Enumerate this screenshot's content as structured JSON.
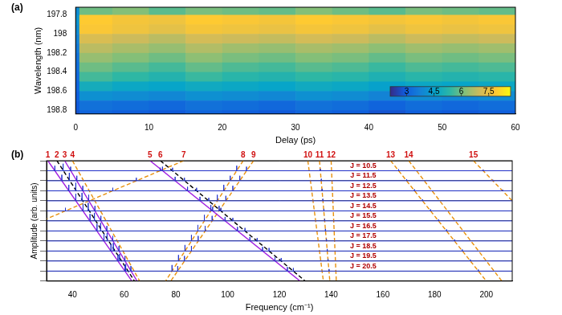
{
  "chart_data": [
    {
      "type": "heatmap",
      "panel": "(a)",
      "x_label": "Delay (ps)",
      "y_label": "Wavelength (nm)",
      "xlim": [
        0,
        60
      ],
      "xticks": [
        0,
        10,
        20,
        30,
        40,
        50,
        60
      ],
      "ylim": [
        198.84,
        197.72
      ],
      "yticks": [
        197.8,
        198,
        198.2,
        198.4,
        198.6,
        198.8
      ],
      "grid": false,
      "x_edges": [
        0,
        0.5,
        5,
        10,
        15,
        20,
        25,
        30,
        35,
        40,
        45,
        50,
        55,
        60
      ],
      "y_edges": [
        197.72,
        197.8,
        197.9,
        198,
        198.1,
        198.2,
        198.3,
        198.4,
        198.5,
        198.6,
        198.7,
        198.8,
        198.84
      ],
      "values": [
        [
          4.0,
          6.0,
          6.2,
          5.8,
          6.1,
          6.0,
          5.9,
          6.2,
          6.0,
          5.8,
          6.1,
          6.0,
          5.9
        ],
        [
          4.2,
          7.9,
          7.7,
          7.6,
          7.9,
          7.8,
          7.7,
          7.9,
          7.8,
          7.7,
          7.8,
          7.7,
          7.8
        ],
        [
          4.0,
          7.8,
          7.6,
          7.4,
          7.7,
          7.6,
          7.5,
          7.7,
          7.6,
          7.4,
          7.6,
          7.5,
          7.6
        ],
        [
          3.8,
          7.2,
          7.0,
          6.8,
          7.1,
          7.0,
          6.9,
          7.1,
          7.0,
          6.8,
          7.0,
          6.9,
          7.0
        ],
        [
          3.6,
          6.8,
          6.6,
          6.4,
          6.7,
          6.5,
          6.4,
          6.6,
          6.5,
          6.3,
          6.5,
          6.4,
          6.5
        ],
        [
          3.4,
          6.4,
          6.2,
          6.0,
          6.3,
          6.1,
          6.0,
          6.2,
          6.1,
          5.9,
          6.1,
          6.0,
          6.1
        ],
        [
          3.3,
          6.0,
          5.8,
          5.6,
          5.9,
          5.7,
          5.6,
          5.8,
          5.7,
          5.5,
          5.7,
          5.6,
          5.7
        ],
        [
          3.2,
          5.6,
          5.4,
          5.2,
          5.5,
          5.3,
          5.2,
          5.4,
          5.3,
          5.1,
          5.3,
          5.2,
          5.3
        ],
        [
          3.1,
          4.9,
          4.7,
          4.6,
          4.8,
          4.7,
          4.6,
          4.8,
          4.7,
          4.5,
          4.7,
          4.6,
          4.7
        ],
        [
          3.0,
          4.1,
          4.0,
          3.9,
          4.1,
          4.0,
          3.9,
          4.1,
          4.0,
          3.8,
          4.0,
          3.9,
          4.0
        ],
        [
          2.9,
          3.4,
          3.3,
          3.2,
          3.4,
          3.3,
          3.2,
          3.4,
          3.3,
          3.1,
          3.3,
          3.2,
          3.3
        ],
        [
          2.8,
          3.1,
          3.0,
          2.9,
          3.1,
          3.0,
          2.9,
          3.1,
          3.0,
          2.8,
          3.0,
          2.9,
          3.0
        ]
      ],
      "colorbar": {
        "range": [
          2.1,
          8.7
        ],
        "ticks": [
          3,
          4.5,
          6,
          7.5
        ]
      }
    },
    {
      "type": "line",
      "panel": "(b)",
      "x_label": "Frequency (cm⁻¹)",
      "y_label": "Amplitude (arb. units)",
      "xlim": [
        30,
        210
      ],
      "xticks": [
        40,
        60,
        80,
        100,
        120,
        140,
        160,
        180,
        200
      ],
      "ylim": [
        0,
        12
      ],
      "yticks": [
        0,
        1,
        2,
        3,
        4,
        5,
        6,
        7,
        8,
        9,
        10,
        11,
        12
      ],
      "tick_labels": "x",
      "grid": true,
      "color": "#2233cc",
      "series": [
        {
          "name": "J = 10.5",
          "offset": 11,
          "x": [
            33.2,
            36.4,
            39.3,
            73.9,
            74.8,
            78.7,
            103.5,
            107.3,
            135.8,
            166.1,
            198.8
          ],
          "values": [
            0.5,
            0.7,
            0.4,
            0.3,
            0.4,
            0.3,
            0.5,
            0.4,
            0.2,
            0.15,
            0.1
          ]
        },
        {
          "name": "J = 11.5",
          "offset": 10,
          "x": [
            35.9,
            38.8,
            41.7,
            64.7,
            79.7,
            83.3,
            101.0,
            104.7,
            136.2,
            169.2,
            202.5
          ],
          "values": [
            0.6,
            0.8,
            0.5,
            0.3,
            0.4,
            0.3,
            0.5,
            0.5,
            0.2,
            0.15,
            0.1
          ]
        },
        {
          "name": "J = 12.5",
          "offset": 9,
          "x": [
            38.6,
            41.3,
            44.0,
            55.6,
            84.5,
            88.0,
            98.5,
            102.0,
            136.5,
            172.2,
            206.3
          ],
          "values": [
            0.6,
            0.8,
            0.5,
            0.3,
            0.4,
            0.3,
            0.6,
            0.5,
            0.2,
            0.15,
            0.1
          ]
        },
        {
          "name": "J = 13.5",
          "offset": 8,
          "x": [
            41.3,
            43.7,
            46.3,
            89.3,
            92.7,
            96.0,
            99.3,
            136.8,
            175.3
          ],
          "values": [
            0.7,
            0.8,
            0.6,
            0.4,
            0.3,
            0.6,
            0.5,
            0.2,
            0.15
          ]
        },
        {
          "name": "J = 14.5",
          "offset": 7,
          "x": [
            37.3,
            44.1,
            46.1,
            48.7,
            93.5,
            94.2,
            96.7,
            97.4,
            137.2,
            178.4
          ],
          "values": [
            0.3,
            0.7,
            0.8,
            0.5,
            0.6,
            0.4,
            0.5,
            0.3,
            0.2,
            0.15
          ]
        },
        {
          "name": "J = 15.5",
          "offset": 6,
          "x": [
            46.8,
            48.5,
            51.0,
            91.0,
            94.0,
            99.0,
            102.0,
            137.5,
            181.5
          ],
          "values": [
            0.7,
            0.8,
            0.5,
            0.6,
            0.5,
            0.4,
            0.3,
            0.2,
            0.15
          ]
        },
        {
          "name": "J = 16.5",
          "offset": 5,
          "x": [
            49.5,
            50.9,
            53.3,
            88.5,
            91.3,
            103.8,
            106.7,
            137.8,
            184.6
          ],
          "values": [
            0.7,
            0.8,
            0.5,
            0.6,
            0.5,
            0.4,
            0.3,
            0.2,
            0.15
          ]
        },
        {
          "name": "J = 17.5",
          "offset": 4,
          "x": [
            52.2,
            53.4,
            55.6,
            86.0,
            88.6,
            108.6,
            111.4,
            138.2,
            187.7
          ],
          "values": [
            0.7,
            0.8,
            0.5,
            0.6,
            0.5,
            0.4,
            0.3,
            0.2,
            0.15
          ]
        },
        {
          "name": "J = 18.5",
          "offset": 3,
          "x": [
            54.9,
            55.8,
            58.0,
            83.5,
            86.0,
            113.5,
            116.0,
            138.5,
            190.7
          ],
          "values": [
            0.7,
            0.8,
            0.5,
            0.6,
            0.5,
            0.4,
            0.3,
            0.2,
            0.15
          ]
        },
        {
          "name": "J = 19.5",
          "offset": 2,
          "x": [
            57.6,
            58.2,
            60.3,
            81.0,
            83.3,
            118.3,
            120.7,
            138.8,
            193.8
          ],
          "values": [
            0.6,
            0.7,
            0.5,
            0.6,
            0.5,
            0.4,
            0.3,
            0.2,
            0.15
          ]
        },
        {
          "name": "J = 20.5",
          "offset": 1,
          "x": [
            60.3,
            60.6,
            62.6,
            78.5,
            80.7,
            123.1,
            125.4,
            139.2,
            196.9
          ],
          "values": [
            0.6,
            0.7,
            0.5,
            0.6,
            0.5,
            0.4,
            0.3,
            0.2,
            0.15
          ]
        }
      ],
      "guide_lines": [
        {
          "label": "1",
          "x": [
            30.5,
            63
          ],
          "y": [
            12,
            0
          ],
          "color": "#a01ee0",
          "line_style": "solid"
        },
        {
          "label": "2",
          "x": [
            34,
            64
          ],
          "y": [
            12,
            0
          ],
          "color": "#000000",
          "line_style": "dashed"
        },
        {
          "label": "3",
          "x": [
            37,
            65
          ],
          "y": [
            12,
            0
          ],
          "color": "#a01ee0",
          "line_style": "solid"
        },
        {
          "label": "4",
          "x": [
            40,
            66
          ],
          "y": [
            12,
            0
          ],
          "color": "#e8900c",
          "line_style": "dashed"
        },
        {
          "label": "5",
          "x": [
            70,
            128
          ],
          "y": [
            12,
            0
          ],
          "color": "#a01ee0",
          "line_style": "solid"
        },
        {
          "label": "6",
          "x": [
            74,
            130
          ],
          "y": [
            12,
            0
          ],
          "color": "#000000",
          "line_style": "dashed"
        },
        {
          "label": "7",
          "x": [
            83,
            30
          ],
          "y": [
            12,
            6.2
          ],
          "color": "#e8900c",
          "line_style": "dashed"
        },
        {
          "label": "8",
          "x": [
            106,
            76
          ],
          "y": [
            12,
            0
          ],
          "color": "#e8900c",
          "line_style": "dashed"
        },
        {
          "label": "9",
          "x": [
            110,
            78
          ],
          "y": [
            12,
            0
          ],
          "color": "#e8900c",
          "line_style": "dashed"
        },
        {
          "label": "10",
          "x": [
            131,
            137
          ],
          "y": [
            12,
            0
          ],
          "color": "#e8900c",
          "line_style": "dashed"
        },
        {
          "label": "11",
          "x": [
            135.5,
            139.5
          ],
          "y": [
            12,
            0
          ],
          "color": "#e8900c",
          "line_style": "dashed"
        },
        {
          "label": "12",
          "x": [
            140,
            142
          ],
          "y": [
            12,
            0
          ],
          "color": "#e8900c",
          "line_style": "dashed"
        },
        {
          "label": "13",
          "x": [
            163,
            200
          ],
          "y": [
            12,
            0
          ],
          "color": "#e8900c",
          "line_style": "dashed"
        },
        {
          "label": "14",
          "x": [
            170,
            206
          ],
          "y": [
            12,
            0
          ],
          "color": "#e8900c",
          "line_style": "dashed"
        },
        {
          "label": "15",
          "x": [
            195,
            210
          ],
          "y": [
            12,
            8
          ],
          "color": "#e8900c",
          "line_style": "dashed"
        }
      ]
    }
  ]
}
